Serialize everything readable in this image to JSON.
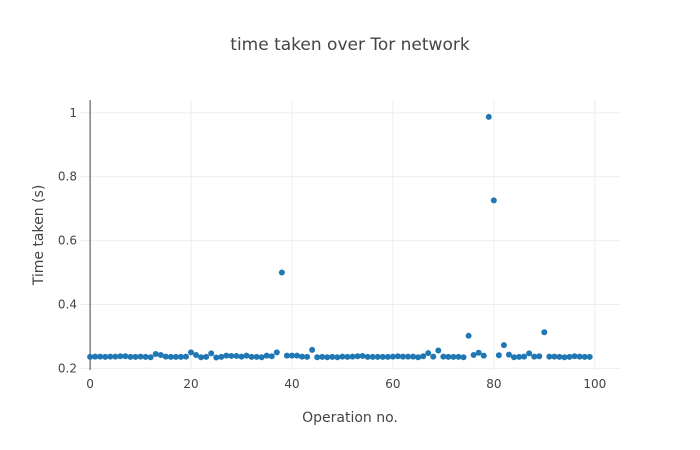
{
  "chart_data": {
    "type": "scatter",
    "title": "time taken over Tor network",
    "xlabel": "Operation no.",
    "ylabel": "Time taken (s)",
    "xlim": [
      -2,
      105
    ],
    "ylim": [
      0.195,
      1.04
    ],
    "xticks": [
      0,
      20,
      40,
      60,
      80,
      100
    ],
    "yticks": [
      0.2,
      0.4,
      0.6,
      0.8,
      1
    ],
    "ytick_labels": [
      "0.2",
      "0.4",
      "0.6",
      "0.8",
      "1"
    ],
    "marker_color": "#1f77b4",
    "series": [
      {
        "name": "time taken",
        "x": [
          0,
          1,
          2,
          3,
          4,
          5,
          6,
          7,
          8,
          9,
          10,
          11,
          12,
          13,
          14,
          15,
          16,
          17,
          18,
          19,
          20,
          21,
          22,
          23,
          24,
          25,
          26,
          27,
          28,
          29,
          30,
          31,
          32,
          33,
          34,
          35,
          36,
          37,
          38,
          39,
          40,
          41,
          42,
          43,
          44,
          45,
          46,
          47,
          48,
          49,
          50,
          51,
          52,
          53,
          54,
          55,
          56,
          57,
          58,
          59,
          60,
          61,
          62,
          63,
          64,
          65,
          66,
          67,
          68,
          69,
          70,
          71,
          72,
          73,
          74,
          75,
          76,
          77,
          78,
          79,
          80,
          81,
          82,
          83,
          84,
          85,
          86,
          87,
          88,
          89,
          90,
          91,
          92,
          93,
          94,
          95,
          96,
          97,
          98,
          99
        ],
        "y": [
          0.236,
          0.237,
          0.237,
          0.236,
          0.237,
          0.237,
          0.238,
          0.238,
          0.236,
          0.236,
          0.237,
          0.236,
          0.235,
          0.245,
          0.242,
          0.237,
          0.236,
          0.236,
          0.236,
          0.237,
          0.25,
          0.242,
          0.235,
          0.236,
          0.247,
          0.234,
          0.236,
          0.24,
          0.239,
          0.239,
          0.237,
          0.24,
          0.236,
          0.236,
          0.235,
          0.24,
          0.238,
          0.25,
          0.5,
          0.24,
          0.24,
          0.24,
          0.237,
          0.236,
          0.258,
          0.235,
          0.236,
          0.235,
          0.236,
          0.235,
          0.237,
          0.236,
          0.237,
          0.238,
          0.239,
          0.236,
          0.236,
          0.236,
          0.236,
          0.236,
          0.237,
          0.238,
          0.237,
          0.237,
          0.237,
          0.235,
          0.238,
          0.248,
          0.237,
          0.256,
          0.237,
          0.236,
          0.236,
          0.236,
          0.235,
          0.302,
          0.242,
          0.249,
          0.24,
          0.987,
          0.726,
          0.241,
          0.273,
          0.243,
          0.235,
          0.236,
          0.237,
          0.247,
          0.237,
          0.238,
          0.313,
          0.237,
          0.237,
          0.236,
          0.235,
          0.236,
          0.238,
          0.237,
          0.236,
          0.236
        ]
      }
    ]
  }
}
